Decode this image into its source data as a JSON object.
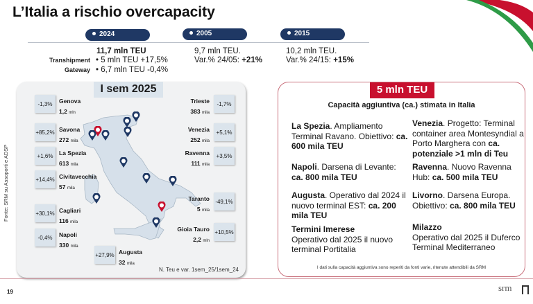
{
  "title": "L’Italia a rischio overcapacity",
  "timeline": [
    {
      "year": "2024",
      "headline": "11,7 mln TEU",
      "rows": [
        {
          "label": "Transhipment",
          "text": "• 5 mln TEU +17,5%"
        },
        {
          "label": "Gateway",
          "text": "• 6,7 mln TEU -0,4%"
        }
      ]
    },
    {
      "year": "2005",
      "line1": "9,7 mln TEU.",
      "line2": "Var.% 24/05: ",
      "line2_bold": "+21%"
    },
    {
      "year": "2015",
      "line1": "10,2 mln TEU.",
      "line2": "Var.% 24/15: ",
      "line2_bold": "+15%"
    }
  ],
  "map": {
    "title": "I sem 2025",
    "source": "Fonte: SRM su Assoporti e ADSP",
    "note": "N. Teu e var. 1sem_25/1sem_24",
    "ports": [
      {
        "name": "Genova",
        "value": "1,2",
        "unit": "mln",
        "change": "-1,3%"
      },
      {
        "name": "Savona",
        "value": "272",
        "unit": "mila",
        "change": "+85,2%"
      },
      {
        "name": "La Spezia",
        "value": "613",
        "unit": "mila",
        "change": "+1,6%"
      },
      {
        "name": "Civitavecchia",
        "value": "57",
        "unit": "mila",
        "change": "+14,4%"
      },
      {
        "name": "Cagliari",
        "value": "116",
        "unit": "mila",
        "change": "+30,1%"
      },
      {
        "name": "Napoli",
        "value": "330",
        "unit": "mila",
        "change": "-0,4%"
      },
      {
        "name": "Augusta",
        "value": "32",
        "unit": "mila",
        "change": "+27,9%"
      },
      {
        "name": "Trieste",
        "value": "383",
        "unit": "mila",
        "change": "-1,7%"
      },
      {
        "name": "Venezia",
        "value": "252",
        "unit": "mila",
        "change": "+5,1%"
      },
      {
        "name": "Ravenna",
        "value": "111",
        "unit": "mila",
        "change": "+3,5%"
      },
      {
        "name": "Taranto",
        "value": "5",
        "unit": "mila",
        "change": "-49,1%"
      },
      {
        "name": "Gioia Tauro",
        "value": "2,2",
        "unit": "mln",
        "change": "+10,5%"
      }
    ]
  },
  "capacity": {
    "badge": "5 mln TEU",
    "subtitle": "Capacità aggiuntiva (ca.) stimata in Italia",
    "items": [
      {
        "name": "La Spezia",
        "text": ". Ampliamento Terminal Ravano. Obiettivo: ",
        "bold": "ca. 600 mila TEU"
      },
      {
        "name": "Napoli",
        "text": ". Darsena di Levante: ",
        "bold": "ca. 800 mila TEU"
      },
      {
        "name": "Augusta",
        "text": ". Operativo dal 2024 il nuovo terminal EST: ",
        "bold": "ca. 200 mila TEU"
      },
      {
        "name": "Termini Imerese",
        "text": "Operativo dal 2025 il nuovo terminal Portitalia",
        "bold": ""
      },
      {
        "name": "Venezia",
        "text": ". Progetto: Terminal container area Montesyndial a Porto Marghera con ",
        "bold": "ca. potenziale >1 mln di Teu"
      },
      {
        "name": "Ravenna",
        "text": ". Nuovo Ravenna Hub: ",
        "bold": "ca. 500 mila TEU"
      },
      {
        "name": "Livorno",
        "text": ". Darsena Europa. Obiettivo: ",
        "bold": "ca. 800 mila TEU"
      },
      {
        "name": "Milazzo",
        "text": "Operativo dal 2025 il Duferco Terminal Mediterraneo",
        "bold": ""
      }
    ],
    "note": "I dati sulla capacità aggiuntiva sono reperiti da fonti varie, ritenute attendibili da SRM"
  },
  "footer": {
    "page": "19",
    "logo": "srm"
  },
  "colors": {
    "navy": "#1f3864",
    "red": "#c8102e",
    "green": "#2e9b47"
  }
}
